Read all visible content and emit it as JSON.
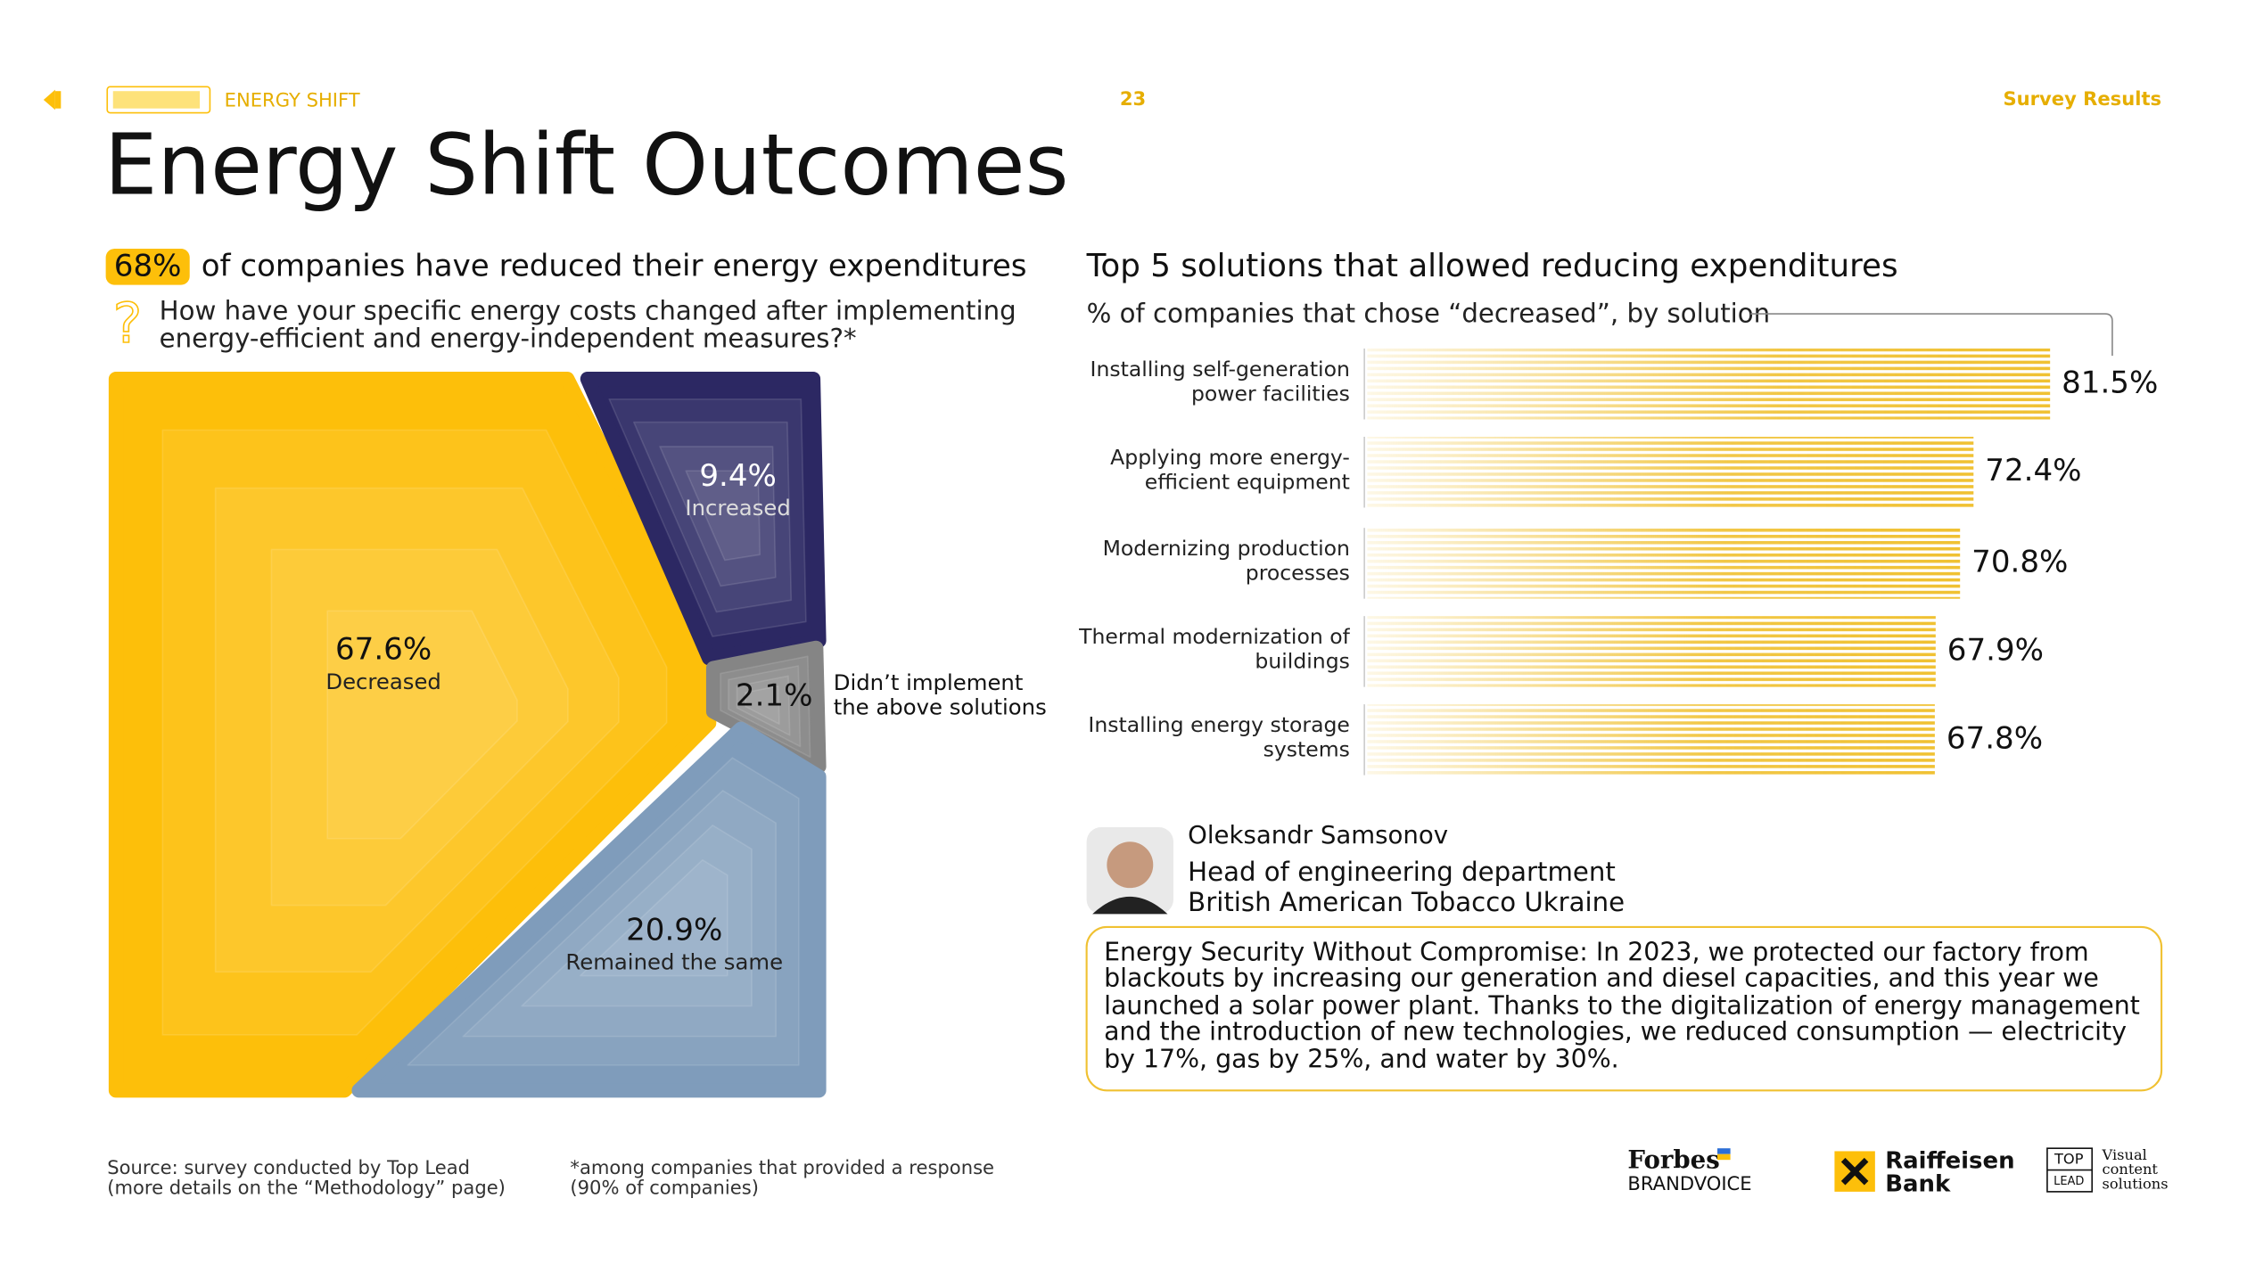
{
  "header": {
    "section": "ENERGY SHIFT",
    "page": "23",
    "part": "Survey Results"
  },
  "title": "Energy Shift Outcomes",
  "chart_data": [
    {
      "type": "voronoi",
      "highlight": "68%",
      "title": "of companies have reduced their energy expenditures",
      "question": "How have your specific energy costs changed after implementing energy-efficient and energy-independent measures?*",
      "categories": [
        "Decreased",
        "Increased",
        "Didn’t implement the above solutions",
        "Remained the same"
      ],
      "values": [
        67.6,
        9.4,
        2.1,
        20.9
      ],
      "value_labels": [
        "67.6%",
        "9.4%",
        "2.1%",
        "20.9%"
      ],
      "colors": [
        "#fdbf0a",
        "#2c2863",
        "#858585",
        "#7f9cbb"
      ]
    },
    {
      "type": "bar",
      "title": "Top 5 solutions that allowed reducing expenditures",
      "subtitle": "% of companies that chose “decreased”, by solution",
      "categories": [
        "Installing self-generation power facilities",
        "Applying more energy-efficient equipment",
        "Modernizing production processes",
        "Thermal modernization of buildings",
        "Installing energy storage systems"
      ],
      "values": [
        81.5,
        72.4,
        70.8,
        67.9,
        67.8
      ],
      "value_labels": [
        "81.5%",
        "72.4%",
        "70.8%",
        "67.9%",
        "67.8%"
      ],
      "color": "#f0c132"
    }
  ],
  "person": {
    "name": "Oleksandr Samsonov",
    "role": "Head of engineering department",
    "company": "British American Tobacco Ukraine"
  },
  "quote": "Energy Security Without Compromise: In 2023, we protected our factory from blackouts by increasing our generation and diesel capacities, and this year we launched a solar power plant. Thanks to the digitalization of energy management and the introduction of new technologies, we reduced consumption — electricity by 17%, gas by 25%, and water by 30%.",
  "footer": {
    "source": [
      "Source: survey conducted by Top Lead",
      "(more details on the “Methodology” page)"
    ],
    "note": [
      "*among companies that provided a response",
      "(90% of companies)"
    ],
    "logos": [
      "Forbes",
      "BRANDVOICE",
      "Raiffeisen",
      "Bank",
      "TOP",
      "LEAD",
      "Visual",
      "content",
      "solutions"
    ]
  }
}
